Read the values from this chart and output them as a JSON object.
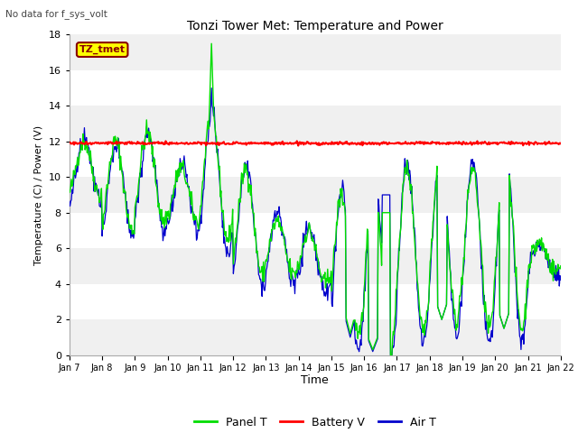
{
  "title": "Tonzi Tower Met: Temperature and Power",
  "subtitle": "No data for f_sys_volt",
  "ylabel": "Temperature (C) / Power (V)",
  "xlabel": "Time",
  "ylim": [
    0,
    18
  ],
  "yticks": [
    0,
    2,
    4,
    6,
    8,
    10,
    12,
    14,
    16,
    18
  ],
  "xtick_labels": [
    "Jan 7",
    "Jan 8",
    "Jan 9",
    "Jan 10",
    "Jan 11",
    "Jan 12",
    "Jan 13",
    "Jan 14",
    "Jan 15",
    "Jan 16",
    "Jan 17",
    "Jan 18",
    "Jan 19",
    "Jan 20",
    "Jan 21",
    "Jan 22"
  ],
  "legend_labels": [
    "Panel T",
    "Battery V",
    "Air T"
  ],
  "panel_color": "#00dd00",
  "battery_color": "#ff0000",
  "air_color": "#0000cc",
  "tz_tmet_box_color": "#ffff00",
  "tz_tmet_text_color": "#880000",
  "band_colors": [
    "#f0f0f0",
    "#ffffff"
  ],
  "battery_v_value": 11.9,
  "background_color": "#ffffff"
}
